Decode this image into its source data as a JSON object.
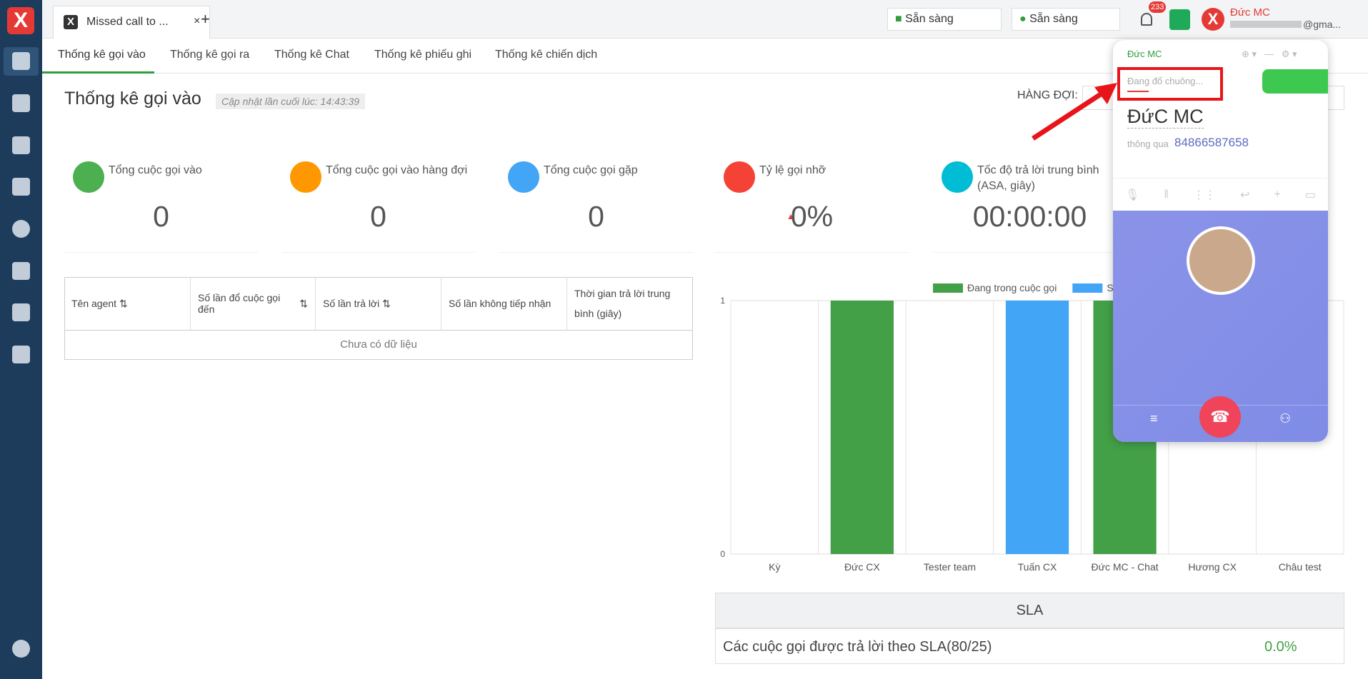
{
  "browser_tab": "Missed call to ...",
  "top_bar": {
    "status_left": "Sẵn sàng",
    "status_right": "Sẵn sàng",
    "notification_count": "233",
    "user_name": "Đức MC",
    "user_email": "@gma..."
  },
  "nav_tabs": [
    "Thống kê gọi vào",
    "Thống kê gọi ra",
    "Thống kê Chat",
    "Thống kê phiếu ghi",
    "Thống kê chiến dịch"
  ],
  "header": {
    "title": "Thống kê gọi vào",
    "updated": "Cập nhật lần cuối lúc: 14:43:39",
    "queue_label": "HÀNG ĐỢI:"
  },
  "stats": [
    {
      "label": "Tổng cuộc gọi vào",
      "value": "0"
    },
    {
      "label": "Tổng cuộc gọi vào hàng đợi",
      "value": "0"
    },
    {
      "label": "Tổng cuộc gọi gặp",
      "value": "0"
    },
    {
      "label": "Tỷ lệ gọi nhỡ",
      "value": "0%"
    },
    {
      "label": "Tốc độ trả lời trung bình (ASA, giây)",
      "value": "00:00:00"
    }
  ],
  "table": {
    "headers": [
      "Tên agent",
      "Số lần đổ cuộc gọi đến",
      "Số lần trả lời",
      "Số lần không tiếp nhận",
      "Thời gian trả lời trung bình (giây)"
    ],
    "empty": "Chưa có dữ liệu"
  },
  "chart_data": {
    "type": "bar",
    "stacked": true,
    "categories": [
      "Kỳ",
      "Đức CX",
      "Tester team",
      "Tuấn CX",
      "Đức MC - Chat",
      "Hương CX",
      "Châu test"
    ],
    "series": [
      {
        "name": "Đang trong cuộc gọi",
        "color": "#43a047",
        "values": [
          0,
          1,
          0,
          0,
          1,
          0,
          0
        ]
      },
      {
        "name": "Sẵn sàng",
        "color": "#42a5f5",
        "values": [
          0,
          0,
          0,
          1,
          0,
          0,
          0
        ]
      }
    ],
    "ylim": [
      0,
      1
    ],
    "yticks": [
      0,
      1
    ],
    "grid": true,
    "legend": "top"
  },
  "sla": {
    "title": "SLA",
    "label": "Các cuộc gọi được trả lời theo SLA(80/25)",
    "value": "0.0%"
  },
  "call_popup": {
    "account": "Đức MC",
    "status": "Đang đổ chuông...",
    "caller": "ĐứC MC",
    "via": "thông qua",
    "number": "84866587658"
  }
}
